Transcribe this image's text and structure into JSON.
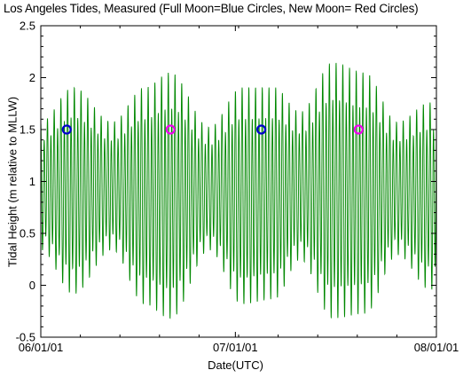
{
  "chart_data": {
    "type": "line",
    "title": "Los Angeles Tides, Measured (Full Moon=Blue Circles, New Moon= Red Circles)",
    "xlabel": "Date(UTC)",
    "ylabel": "Tidal Height (m relative to MLLW)",
    "xlim": [
      "2001-06-01",
      "2001-08-01"
    ],
    "ylim": [
      -0.5,
      2.5
    ],
    "x_ticks": [
      "06/01/01",
      "07/01/01",
      "08/01/01"
    ],
    "y_ticks": [
      "-0.5",
      "0",
      "0.5",
      "1",
      "1.5",
      "2",
      "2.5"
    ],
    "grid": false,
    "series": [
      {
        "type": "line",
        "color": "#008800",
        "envelope": {
          "x": [
            "2001-06-01",
            "2001-06-06",
            "2001-06-12",
            "2001-06-17",
            "2001-06-21",
            "2001-06-27",
            "2001-07-02",
            "2001-07-07",
            "2001-07-11",
            "2001-07-16",
            "2001-07-21",
            "2001-07-26",
            "2001-07-31"
          ],
          "high": [
            1.6,
            1.95,
            1.6,
            1.95,
            2.1,
            1.55,
            1.95,
            1.95,
            1.7,
            2.2,
            2.1,
            1.6,
            1.8
          ],
          "low": [
            0.3,
            -0.15,
            0.3,
            -0.25,
            -0.4,
            0.3,
            -0.25,
            -0.2,
            0.2,
            -0.4,
            -0.35,
            0.25,
            -0.1
          ]
        }
      },
      {
        "name": "Full Moon",
        "type": "scatter",
        "color": "#0000cc",
        "x": [
          "2001-06-05",
          "2001-07-05"
        ],
        "y": [
          1.5,
          1.5
        ]
      },
      {
        "name": "New Moon",
        "type": "scatter",
        "color": "#ee00ee",
        "x": [
          "2001-06-21",
          "2001-07-20"
        ],
        "y": [
          1.5,
          1.5
        ]
      }
    ]
  }
}
